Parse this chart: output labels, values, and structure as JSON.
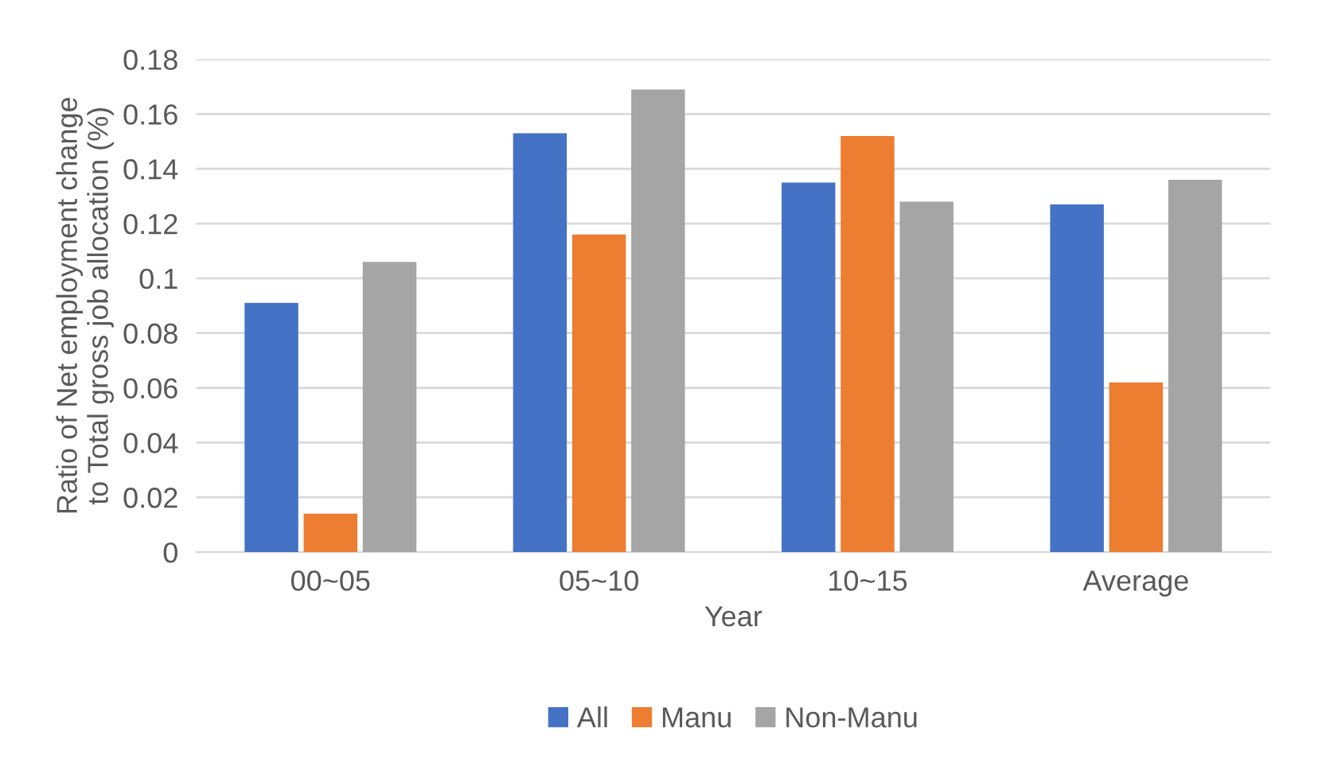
{
  "chart_data": {
    "type": "bar",
    "xlabel": "Year",
    "ylabel": "Ratio of Net employment change\nto Total gross job allocation (%)",
    "categories": [
      "00~05",
      "05~10",
      "10~15",
      "Average"
    ],
    "series": [
      {
        "name": "All",
        "color": "#4472c4",
        "values": [
          0.091,
          0.153,
          0.135,
          0.127
        ]
      },
      {
        "name": "Manu",
        "color": "#ed7d31",
        "values": [
          0.014,
          0.116,
          0.152,
          0.062
        ]
      },
      {
        "name": "Non-Manu",
        "color": "#a5a5a5",
        "values": [
          0.106,
          0.169,
          0.128,
          0.136
        ]
      }
    ],
    "ylim": [
      0,
      0.18
    ],
    "yticks": [
      0,
      0.02,
      0.04,
      0.06,
      0.08,
      0.1,
      0.12,
      0.14,
      0.16,
      0.18
    ],
    "grid": "y",
    "legend": "bottom"
  }
}
